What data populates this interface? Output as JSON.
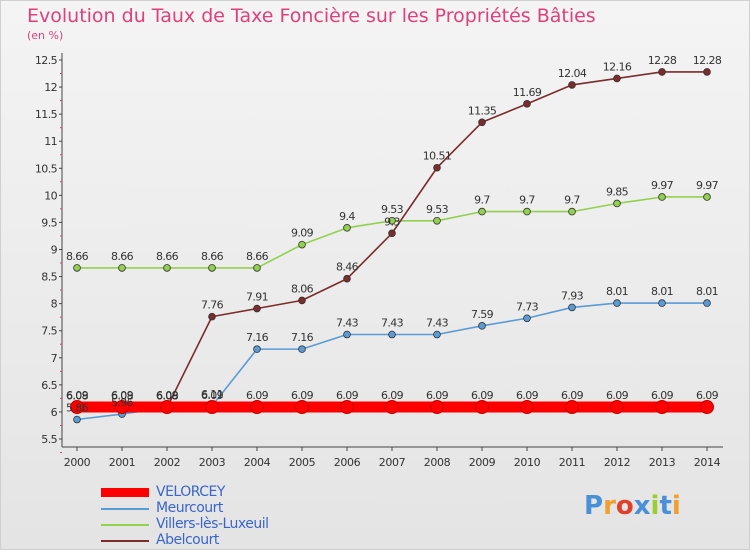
{
  "chart_data": {
    "type": "line",
    "title": "Evolution du Taux de Taxe Foncière sur les Propriétés Bâties",
    "subtitle": "(en %)",
    "x": [
      "2000",
      "2001",
      "2002",
      "2003",
      "2004",
      "2005",
      "2006",
      "2007",
      "2008",
      "2009",
      "2010",
      "2011",
      "2012",
      "2013",
      "2014"
    ],
    "ylim": [
      5.5,
      12.5
    ],
    "yticks": [
      "5.5",
      "6",
      "6.5",
      "7",
      "7.5",
      "8",
      "8.5",
      "9",
      "9.5",
      "10",
      "10.5",
      "11",
      "11.5",
      "12",
      "12.5"
    ],
    "grid": false,
    "series": [
      {
        "name": "VELORCEY",
        "color": "#ff0000",
        "values": [
          6.09,
          6.09,
          6.09,
          6.09,
          6.09,
          6.09,
          6.09,
          6.09,
          6.09,
          6.09,
          6.09,
          6.09,
          6.09,
          6.09,
          6.09
        ],
        "labels": [
          "6.09",
          "6.09",
          "6.09",
          "6.09",
          "6.09",
          "6.09",
          "6.09",
          "6.09",
          "6.09",
          "6.09",
          "6.09",
          "6.09",
          "6.09",
          "6.09",
          "6.09"
        ]
      },
      {
        "name": "Meurcourt",
        "color": "#5b9bd5",
        "values": [
          5.86,
          5.96,
          6.08,
          6.11,
          7.16,
          7.16,
          7.43,
          7.43,
          7.43,
          7.59,
          7.73,
          7.93,
          8.01,
          8.01,
          8.01
        ],
        "labels": [
          "5.86",
          "5.96",
          "6.08",
          "6.11",
          "7.16",
          "7.16",
          "7.43",
          "7.43",
          "7.43",
          "7.59",
          "7.73",
          "7.93",
          "8.01",
          "8.01",
          "8.01"
        ]
      },
      {
        "name": "Villers-lès-Luxeuil",
        "color": "#92d050",
        "values": [
          8.66,
          8.66,
          8.66,
          8.66,
          8.66,
          9.09,
          9.4,
          9.53,
          9.53,
          9.7,
          9.7,
          9.7,
          9.85,
          9.97,
          9.97
        ],
        "labels": [
          "8.66",
          "8.66",
          "8.66",
          "8.66",
          "8.66",
          "9.09",
          "9.4",
          "9.53",
          "9.53",
          "9.7",
          "9.7",
          "9.7",
          "9.85",
          "9.97",
          "9.97"
        ]
      },
      {
        "name": "Abelcourt",
        "color": "#7b2c2c",
        "values": [
          6.08,
          6.08,
          6.08,
          7.76,
          7.91,
          8.06,
          8.46,
          9.3,
          10.51,
          11.35,
          11.69,
          12.04,
          12.16,
          12.28,
          12.28
        ],
        "labels": [
          "6.08",
          "6.08",
          "6.08",
          "7.76",
          "7.91",
          "8.06",
          "8.46",
          "9.3",
          "10.51",
          "11.35",
          "11.69",
          "12.04",
          "12.16",
          "12.28",
          "12.28"
        ]
      }
    ]
  },
  "brand": {
    "logo_letters": [
      "P",
      "r",
      "o",
      "x",
      "i",
      "t",
      "i"
    ],
    "logo_colors": [
      "#4a90d9",
      "#f0a030",
      "#e0402a",
      "#4a90d9",
      "#9acd32",
      "#4a90d9",
      "#f0a030"
    ]
  }
}
